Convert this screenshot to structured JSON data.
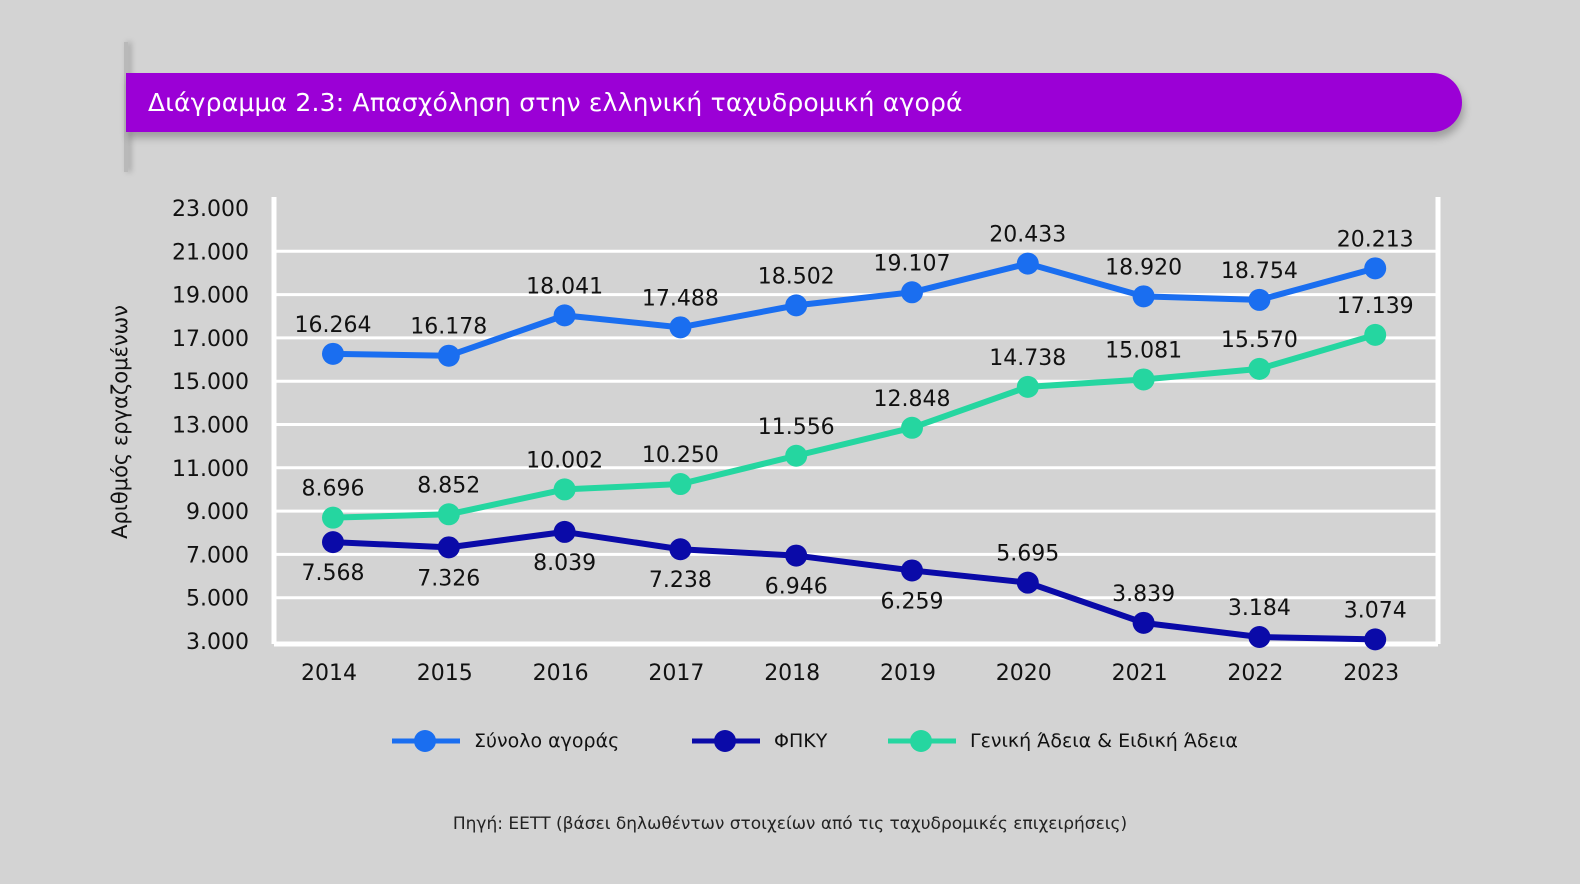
{
  "header": {
    "title": "Διάγραμμα 2.3: Απασχόληση στην ελληνική ταχυδρομική αγορά",
    "accent_color": "#9b00d6"
  },
  "chart_data": {
    "type": "line",
    "title": "Διάγραμμα 2.3: Απασχόληση στην ελληνική ταχυδρομική αγορά",
    "xlabel": "",
    "ylabel": "Αριθμός εργαζομένων",
    "x": [
      "2014",
      "2015",
      "2016",
      "2017",
      "2018",
      "2019",
      "2020",
      "2021",
      "2022",
      "2023"
    ],
    "ylim": [
      3000,
      23000
    ],
    "yticks": [
      3000,
      5000,
      7000,
      9000,
      11000,
      13000,
      15000,
      17000,
      19000,
      21000,
      23000
    ],
    "ytick_labels": [
      "3.000",
      "5.000",
      "7.000",
      "9.000",
      "11.000",
      "13.000",
      "15.000",
      "17.000",
      "19.000",
      "21.000",
      "23.000"
    ],
    "grid": true,
    "legend_position": "bottom",
    "series": [
      {
        "name": "Σύνολο αγοράς",
        "color": "#1a6ef0",
        "values": [
          16264,
          16178,
          18041,
          17488,
          18502,
          19107,
          20433,
          18920,
          18754,
          20213
        ],
        "labels": [
          "16.264",
          "16.178",
          "18.041",
          "17.488",
          "18.502",
          "19.107",
          "20.433",
          "18.920",
          "18.754",
          "20.213"
        ],
        "label_position": [
          "above",
          "above",
          "above",
          "above",
          "above",
          "above",
          "above",
          "above",
          "above",
          "above"
        ]
      },
      {
        "name": "ΦΠΚΥ",
        "color": "#0a0aa8",
        "values": [
          7568,
          7326,
          8039,
          7238,
          6946,
          6259,
          5695,
          3839,
          3184,
          3074
        ],
        "labels": [
          "7.568",
          "7.326",
          "8.039",
          "7.238",
          "6.946",
          "6.259",
          "5.695",
          "3.839",
          "3.184",
          "3.074"
        ],
        "label_position": [
          "below",
          "below",
          "below",
          "below",
          "below",
          "below",
          "above",
          "above",
          "above",
          "above"
        ]
      },
      {
        "name": "Γενική Άδεια & Ειδική Άδεια",
        "color": "#25d6a0",
        "values": [
          8696,
          8852,
          10002,
          10250,
          11556,
          12848,
          14738,
          15081,
          15570,
          17139
        ],
        "labels": [
          "8.696",
          "8.852",
          "10.002",
          "10.250",
          "11.556",
          "12.848",
          "14.738",
          "15.081",
          "15.570",
          "17.139"
        ],
        "label_position": [
          "above",
          "above",
          "above",
          "above",
          "above",
          "above",
          "above",
          "above",
          "above",
          "above"
        ]
      }
    ]
  },
  "legend": {
    "items": [
      {
        "label": "Σύνολο αγοράς",
        "color": "#1a6ef0"
      },
      {
        "label": "ΦΠΚΥ",
        "color": "#0a0aa8"
      },
      {
        "label": "Γενική Άδεια & Ειδική Άδεια",
        "color": "#25d6a0"
      }
    ]
  },
  "footer": {
    "source": "Πηγή: ΕΕΤΤ (βάσει δηλωθέντων στοιχείων από τις ταχυδρομικές επιχειρήσεις)"
  }
}
